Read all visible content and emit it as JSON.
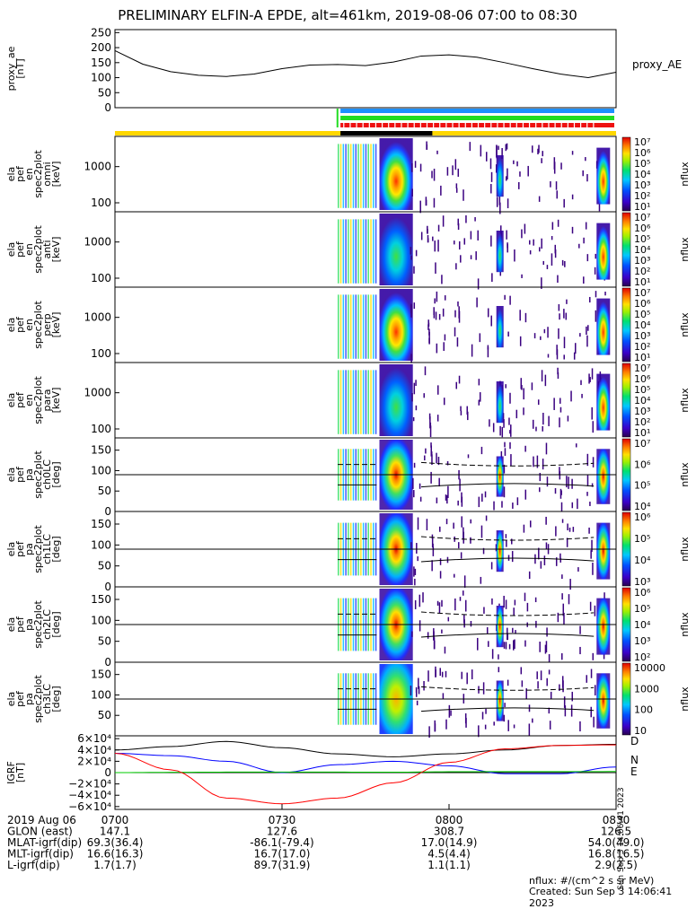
{
  "title": "PRELIMINARY ELFIN-A EPDE, alt=461km, 2019-08-06 07:00 to 08:30",
  "colors": {
    "black": "#000000",
    "blue": "#0000ff",
    "red": "#ff0000",
    "green": "#00cc00",
    "status_yellow": "#ffd700",
    "status_blue": "#1e90ff",
    "status_green": "#22dd22",
    "status_red": "#ee1111"
  },
  "chart_data": [
    {
      "type": "line",
      "name": "proxy_ae",
      "ylabel_lines": [
        "proxy_ae",
        "[nT]"
      ],
      "legend": "proxy_AE",
      "yticks": [
        "0",
        "50",
        "100",
        "150",
        "200",
        "250"
      ],
      "ylim": [
        0,
        260
      ],
      "x_minutes": [
        0,
        5,
        10,
        15,
        20,
        25,
        30,
        35,
        40,
        45,
        50,
        55,
        60,
        65,
        70,
        75,
        80,
        85,
        90
      ],
      "values": [
        190,
        145,
        120,
        108,
        104,
        112,
        130,
        142,
        144,
        140,
        152,
        172,
        176,
        168,
        150,
        130,
        112,
        100,
        118
      ]
    },
    {
      "type": "heatmap",
      "ylabel_lines": [
        "ela",
        "pef",
        "en",
        "spec2plot",
        "omni",
        "[keV]"
      ],
      "yticks": [
        "100",
        "1000"
      ],
      "colorbar": {
        "label": "nflux",
        "ticks": [
          "10⁷",
          "10⁶",
          "10⁵",
          "10⁴",
          "10³",
          "10²",
          "10¹"
        ]
      }
    },
    {
      "type": "heatmap",
      "ylabel_lines": [
        "ela",
        "pef",
        "en",
        "spec2plot",
        "anti",
        "[keV]"
      ],
      "yticks": [
        "100",
        "1000"
      ],
      "colorbar": {
        "label": "nflux",
        "ticks": [
          "10⁷",
          "10⁶",
          "10⁵",
          "10⁴",
          "10³",
          "10²",
          "10¹"
        ]
      }
    },
    {
      "type": "heatmap",
      "ylabel_lines": [
        "ela",
        "pef",
        "en",
        "spec2plot",
        "perp",
        "[keV]"
      ],
      "yticks": [
        "100",
        "1000"
      ],
      "colorbar": {
        "label": "nflux",
        "ticks": [
          "10⁷",
          "10⁶",
          "10⁵",
          "10⁴",
          "10³",
          "10²",
          "10¹"
        ]
      }
    },
    {
      "type": "heatmap",
      "ylabel_lines": [
        "ela",
        "pef",
        "en",
        "spec2plot",
        "para",
        "[keV]"
      ],
      "yticks": [
        "100",
        "1000"
      ],
      "colorbar": {
        "label": "nflux",
        "ticks": [
          "10⁷",
          "10⁶",
          "10⁵",
          "10⁴",
          "10³",
          "10²",
          "10¹"
        ]
      }
    },
    {
      "type": "heatmap",
      "ylabel_lines": [
        "ela",
        "pef",
        "pa",
        "spec2plot",
        "ch0LC",
        "[deg]"
      ],
      "yticks": [
        "0",
        "50",
        "100",
        "150"
      ],
      "colorbar": {
        "label": "nflux",
        "ticks": [
          "10⁷",
          "10⁶",
          "10⁵",
          "10⁴"
        ]
      }
    },
    {
      "type": "heatmap",
      "ylabel_lines": [
        "ela",
        "pef",
        "pa",
        "spec2plot",
        "ch1LC",
        "[deg]"
      ],
      "yticks": [
        "0",
        "50",
        "100",
        "150"
      ],
      "colorbar": {
        "label": "nflux",
        "ticks": [
          "10⁶",
          "10⁵",
          "10⁴",
          "10³"
        ]
      }
    },
    {
      "type": "heatmap",
      "ylabel_lines": [
        "ela",
        "pef",
        "pa",
        "spec2plot",
        "ch2LC",
        "[deg]"
      ],
      "yticks": [
        "0",
        "50",
        "100",
        "150"
      ],
      "colorbar": {
        "label": "nflux",
        "ticks": [
          "10⁶",
          "10⁵",
          "10⁴",
          "10³",
          "10²"
        ]
      }
    },
    {
      "type": "heatmap",
      "ylabel_lines": [
        "ela",
        "pef",
        "pa",
        "spec2plot",
        "ch3LC",
        "[deg]"
      ],
      "yticks": [
        "50",
        "100",
        "150"
      ],
      "colorbar": {
        "label": "nflux",
        "ticks": [
          "10000",
          "1000",
          "100",
          "10"
        ]
      }
    },
    {
      "type": "line",
      "name": "IGRF",
      "ylabel_lines": [
        "IGRF",
        "[nT]"
      ],
      "yticks": [
        "6×10⁴",
        "4×10⁴",
        "2×10⁴",
        "0",
        "−2×10⁴",
        "−4×10⁴",
        "−6×10⁴"
      ],
      "ylim": [
        -65000,
        65000
      ],
      "x_minutes": [
        0,
        10,
        20,
        30,
        40,
        50,
        60,
        70,
        80,
        90
      ],
      "series": [
        {
          "name": "D",
          "color": "#000000",
          "values": [
            40000,
            46000,
            55000,
            44000,
            33000,
            28000,
            33000,
            40000,
            48000,
            50000
          ]
        },
        {
          "name": "N",
          "color": "#0000ff",
          "values": [
            34000,
            30000,
            20000,
            0,
            14000,
            20000,
            12000,
            -2000,
            -2000,
            10000
          ]
        },
        {
          "name": "E",
          "color": "#00cc00",
          "values": [
            0,
            500,
            900,
            1000,
            900,
            700,
            1500,
            1800,
            1700,
            1900
          ]
        },
        {
          "name": "",
          "color": "#ff0000",
          "values": [
            34000,
            5000,
            -45000,
            -55000,
            -45000,
            -18000,
            18000,
            42000,
            48000,
            49000
          ]
        }
      ]
    }
  ],
  "igrf_legend": {
    "D": "D",
    "N": "N",
    "E": "E"
  },
  "vertical_stamp": "Sun Sep  3 14:06:41 2023",
  "xaxis": {
    "date_label": "2019 Aug 06",
    "rows": [
      {
        "label": "2019 Aug 06",
        "values": [
          "0700",
          "0730",
          "0800",
          "0830"
        ]
      },
      {
        "label": "GLON (east)",
        "values": [
          "147.1",
          "127.6",
          "308.7",
          "126.5"
        ]
      },
      {
        "label": "MLAT-igrf(dip)",
        "values": [
          "69.3(36.4)",
          "-86.1(-79.4)",
          "17.0(14.9)",
          "54.0(49.0)"
        ]
      },
      {
        "label": "MLT-igrf(dip)",
        "values": [
          "16.6(16.3)",
          "16.7(17.0)",
          "4.5(4.4)",
          "16.8(16.5)"
        ]
      },
      {
        "label": "L-igrf(dip)",
        "values": [
          "1.7(1.7)",
          "89.7(31.9)",
          "1.1(1.1)",
          "2.9(2.5)"
        ]
      }
    ]
  },
  "footer": {
    "units": "nflux: #/(cm^2 s sr MeV)",
    "created": "Created: Sun Sep  3 14:06:41 2023"
  }
}
